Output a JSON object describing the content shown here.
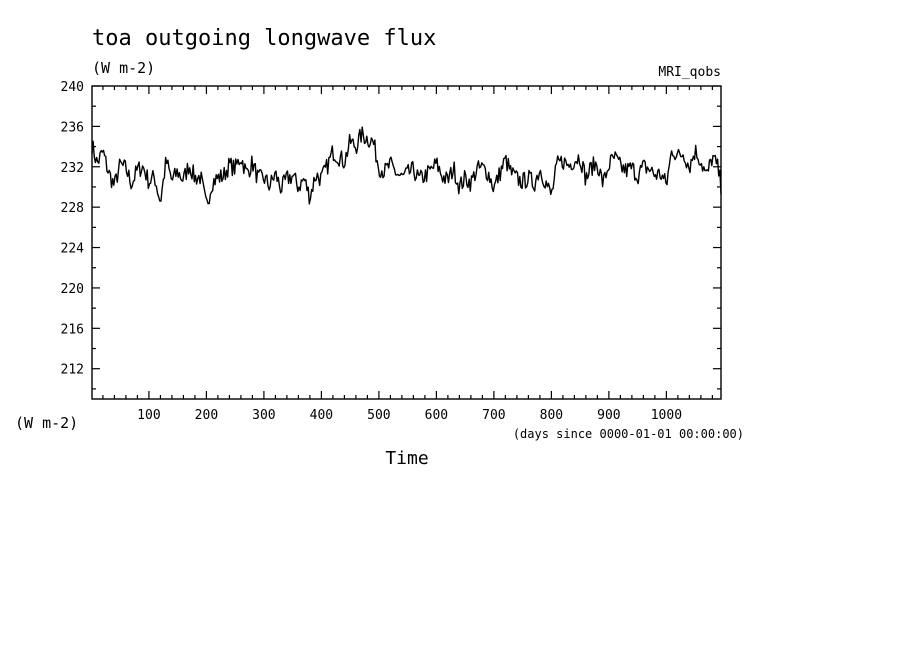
{
  "chart_data": {
    "type": "line",
    "title": "toa outgoing longwave flux",
    "subtitle": "(W m-2)",
    "source_label": "MRI_qobs",
    "ylabel": "(W m-2)",
    "xlabel": "Time",
    "x_units": "(days since 0000-01-01 00:00:00)",
    "xlim": [
      1,
      1095
    ],
    "ylim": [
      209,
      240
    ],
    "x_ticks": [
      100,
      200,
      300,
      400,
      500,
      600,
      700,
      800,
      900,
      1000
    ],
    "x_tick_labels": [
      "100",
      "200",
      "300",
      "400",
      "500",
      "600",
      "700",
      "800",
      "900",
      "1000"
    ],
    "y_ticks": [
      212,
      216,
      220,
      224,
      228,
      232,
      236,
      240
    ],
    "y_tick_labels": [
      "212",
      "216",
      "220",
      "224",
      "228",
      "232",
      "236",
      "240"
    ],
    "grid": false,
    "legend": "none",
    "line_color": "#000000",
    "series": [
      {
        "x": [
          1,
          10,
          20,
          30,
          40,
          50,
          60,
          70,
          80,
          90,
          100,
          110,
          120,
          130,
          140,
          150,
          160,
          170,
          180,
          190,
          200,
          210,
          220,
          230,
          240,
          250,
          260,
          270,
          280,
          290,
          300,
          310,
          320,
          330,
          340,
          350,
          360,
          370,
          380,
          390,
          400,
          410,
          420,
          430,
          440,
          450,
          460,
          470,
          480,
          490,
          500,
          510,
          520,
          530,
          540,
          550,
          560,
          570,
          580,
          590,
          600,
          610,
          620,
          630,
          640,
          650,
          660,
          670,
          680,
          690,
          700,
          710,
          720,
          730,
          740,
          750,
          760,
          770,
          780,
          790,
          800,
          810,
          820,
          830,
          840,
          850,
          860,
          870,
          880,
          890,
          900,
          910,
          920,
          930,
          940,
          950,
          960,
          970,
          980,
          990,
          1000,
          1010,
          1020,
          1030,
          1040,
          1050,
          1060,
          1070,
          1080,
          1090,
          1095
        ],
        "values": [
          234.2,
          232.3,
          233.5,
          231.4,
          230.1,
          232.2,
          231.8,
          230.3,
          231.7,
          232.0,
          230.5,
          231.0,
          228.5,
          232.6,
          230.6,
          231.5,
          230.7,
          232.2,
          230.9,
          231.0,
          228.0,
          230.5,
          230.9,
          231.1,
          232.2,
          231.8,
          233.0,
          231.3,
          232.4,
          230.8,
          230.9,
          230.1,
          231.3,
          229.8,
          230.8,
          231.1,
          230.0,
          230.8,
          229.0,
          231.2,
          230.8,
          232.0,
          233.5,
          233.0,
          232.5,
          234.5,
          234.0,
          235.2,
          234.8,
          234.5,
          232.0,
          231.5,
          232.2,
          231.4,
          230.9,
          231.3,
          231.7,
          230.7,
          231.1,
          231.6,
          232.3,
          231.1,
          230.6,
          231.9,
          230.0,
          230.9,
          230.4,
          231.7,
          231.9,
          231.4,
          229.9,
          231.3,
          232.7,
          231.4,
          230.8,
          230.5,
          230.9,
          230.3,
          231.8,
          230.5,
          229.1,
          232.2,
          232.6,
          232.1,
          232.7,
          233.0,
          230.8,
          232.0,
          232.3,
          230.3,
          232.2,
          232.9,
          232.0,
          231.6,
          231.9,
          231.1,
          232.0,
          231.8,
          231.2,
          231.3,
          230.2,
          233.8,
          233.0,
          233.4,
          232.0,
          233.6,
          232.6,
          231.0,
          233.0,
          231.8,
          230.1
        ]
      }
    ]
  }
}
